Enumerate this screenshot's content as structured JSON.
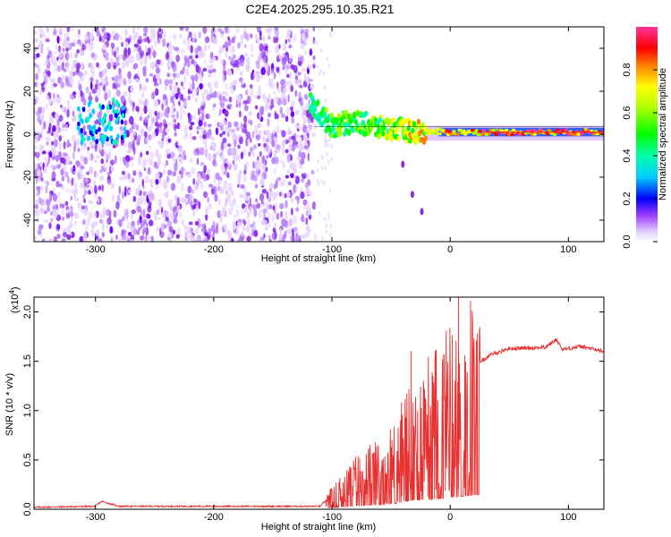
{
  "title": "C2E4.2025.295.10.35.R21",
  "chart_data": [
    {
      "type": "heatmap",
      "name": "spectrogram",
      "xlabel": "Height of straight line (km)",
      "ylabel": "Frequency (Hz)",
      "xlim": [
        -352,
        130
      ],
      "ylim": [
        -50,
        50
      ],
      "x_ticks": [
        -300,
        -200,
        -100,
        0,
        100
      ],
      "x_tick_labels": [
        "-300",
        "-200",
        "-100",
        "0",
        "100"
      ],
      "y_ticks": [
        -40,
        -20,
        0,
        20,
        40
      ],
      "y_tick_labels": [
        "-40",
        "-20",
        "0",
        "20",
        "40"
      ],
      "colorbar": {
        "label": "Normalized spectral amplitude",
        "range": [
          0,
          1
        ],
        "ticks": [
          0,
          0.2,
          0.4,
          0.6,
          0.8
        ],
        "tick_labels": [
          "0.0",
          "0.2",
          "0.4",
          "0.6",
          "0.8"
        ],
        "colors": [
          "#ffffff",
          "#d9b3ff",
          "#8000ff",
          "#0000ff",
          "#00ffff",
          "#00ff00",
          "#ffff00",
          "#ff0000",
          "#ff3399"
        ]
      },
      "features": {
        "noise_region_x": [
          -352,
          -115
        ],
        "noise_amplitude": 0.15,
        "signal_track": [
          {
            "x": -115,
            "y": 12,
            "amp": 0.45
          },
          {
            "x": -100,
            "y": 4,
            "amp": 0.5
          },
          {
            "x": -80,
            "y": 6,
            "amp": 0.55
          },
          {
            "x": -60,
            "y": 3,
            "amp": 0.6
          },
          {
            "x": -40,
            "y": 2,
            "amp": 0.65
          },
          {
            "x": -20,
            "y": 1,
            "amp": 0.75
          },
          {
            "x": 0,
            "y": 1,
            "amp": 0.8
          },
          {
            "x": 50,
            "y": 1,
            "amp": 0.9
          },
          {
            "x": 100,
            "y": 1,
            "amp": 0.95
          },
          {
            "x": 130,
            "y": 1,
            "amp": 0.95
          }
        ],
        "tail": [
          {
            "x": -40,
            "y": -14
          },
          {
            "x": -32,
            "y": -28
          },
          {
            "x": -24,
            "y": -36
          }
        ]
      }
    },
    {
      "type": "line",
      "name": "snr",
      "xlabel": "Height of straight line (km)",
      "ylabel": "SNR (10 * v/v)",
      "multiplier_label": "(x10",
      "multiplier_exp": "4",
      "multiplier_close": ")",
      "xlim": [
        -352,
        130
      ],
      "ylim": [
        0,
        2.15
      ],
      "x_ticks": [
        -300,
        -200,
        -100,
        0,
        100
      ],
      "x_tick_labels": [
        "-300",
        "-200",
        "-100",
        "0",
        "100"
      ],
      "y_ticks": [
        0,
        0.5,
        1.0,
        1.5,
        2.0
      ],
      "y_tick_labels": [
        "0.0",
        "0.5",
        "1.0",
        "1.5",
        "2.0"
      ],
      "color": "#e83030",
      "envelope": [
        {
          "x": -352,
          "y": 0.02
        },
        {
          "x": -300,
          "y": 0.03
        },
        {
          "x": -295,
          "y": 0.08
        },
        {
          "x": -280,
          "y": 0.03
        },
        {
          "x": -110,
          "y": 0.03
        },
        {
          "x": -100,
          "y": 0.15
        },
        {
          "x": -80,
          "y": 0.35
        },
        {
          "x": -60,
          "y": 0.45
        },
        {
          "x": -45,
          "y": 0.6
        },
        {
          "x": -30,
          "y": 0.95
        },
        {
          "x": -15,
          "y": 1.0
        },
        {
          "x": 0,
          "y": 1.2
        },
        {
          "x": 10,
          "y": 1.3
        },
        {
          "x": 20,
          "y": 1.45
        },
        {
          "x": 35,
          "y": 1.57
        },
        {
          "x": 50,
          "y": 1.63
        },
        {
          "x": 80,
          "y": 1.64
        },
        {
          "x": 90,
          "y": 1.72
        },
        {
          "x": 95,
          "y": 1.62
        },
        {
          "x": 110,
          "y": 1.65
        },
        {
          "x": 130,
          "y": 1.6
        }
      ],
      "spikes": [
        {
          "x": 7,
          "y": 2.15
        },
        {
          "x": -33,
          "y": 1.6
        },
        {
          "x": 13,
          "y": 1.5
        },
        {
          "x": -12,
          "y": 1.4
        }
      ]
    }
  ]
}
